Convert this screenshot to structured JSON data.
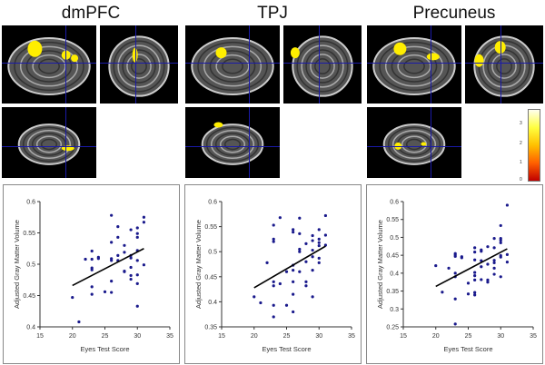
{
  "regions": [
    {
      "title": "dmPFC"
    },
    {
      "title": "TPJ"
    },
    {
      "title": "Precuneus"
    }
  ],
  "colorbar": {
    "labels": [
      "3",
      "2",
      "1",
      "0"
    ],
    "colors": [
      "#ffffff",
      "#ffff00",
      "#ff8000",
      "#c00000"
    ]
  },
  "crosshair_color": "#1a1aa8",
  "activation_color": "#ffee00",
  "chart_data": [
    {
      "type": "scatter",
      "title": "dmPFC",
      "xlabel": "Eyes Test Score",
      "ylabel": "Adjusted Gray Matter Volume",
      "xlim": [
        15,
        35
      ],
      "ylim": [
        0.4,
        0.6
      ],
      "xticks": [
        "15",
        "20",
        "25",
        "30",
        "35"
      ],
      "yticks": [
        "0.4",
        "0.45",
        "0.5",
        "0.55",
        "0.6"
      ],
      "point_color": "#1a1a8c",
      "x": [
        20,
        21,
        22,
        23,
        23,
        23,
        23,
        23,
        23,
        24,
        24,
        25,
        26,
        26,
        26,
        26,
        26,
        26,
        27,
        27,
        27,
        27,
        28,
        28,
        28,
        28,
        29,
        29,
        29,
        29,
        29,
        29,
        30,
        30,
        30,
        30,
        30,
        30,
        30,
        30,
        31,
        31,
        31
      ],
      "y": [
        0.447,
        0.408,
        0.508,
        0.521,
        0.508,
        0.494,
        0.491,
        0.464,
        0.452,
        0.511,
        0.509,
        0.456,
        0.578,
        0.535,
        0.509,
        0.506,
        0.473,
        0.455,
        0.56,
        0.543,
        0.514,
        0.506,
        0.53,
        0.519,
        0.489,
        0.488,
        0.555,
        0.514,
        0.51,
        0.495,
        0.482,
        0.476,
        0.558,
        0.549,
        0.543,
        0.522,
        0.506,
        0.483,
        0.469,
        0.433,
        0.575,
        0.567,
        0.499
      ],
      "trendline": {
        "x": [
          20,
          31
        ],
        "y": [
          0.466,
          0.525
        ]
      }
    },
    {
      "type": "scatter",
      "title": "TPJ",
      "xlabel": "Eyes Test Score",
      "ylabel": "Adjusted Gray Matter Volume",
      "xlim": [
        15,
        35
      ],
      "ylim": [
        0.35,
        0.6
      ],
      "xticks": [
        "15",
        "20",
        "25",
        "30",
        "35"
      ],
      "yticks": [
        "0.35",
        "0.4",
        "0.45",
        "0.5",
        "0.55",
        "0.6"
      ],
      "point_color": "#1a1a8c",
      "x": [
        20,
        21,
        22,
        23,
        23,
        23,
        23,
        23,
        23,
        23,
        24,
        24,
        25,
        25,
        26,
        26,
        26,
        26,
        26,
        26,
        26,
        27,
        27,
        27,
        27,
        27,
        28,
        28,
        28,
        28,
        29,
        29,
        29,
        29,
        29,
        29,
        30,
        30,
        30,
        30,
        30,
        30,
        31,
        31,
        31
      ],
      "y": [
        0.41,
        0.398,
        0.478,
        0.553,
        0.525,
        0.52,
        0.44,
        0.432,
        0.393,
        0.37,
        0.568,
        0.436,
        0.46,
        0.393,
        0.544,
        0.539,
        0.473,
        0.463,
        0.44,
        0.415,
        0.38,
        0.567,
        0.536,
        0.505,
        0.5,
        0.46,
        0.516,
        0.48,
        0.44,
        0.432,
        0.532,
        0.522,
        0.503,
        0.49,
        0.463,
        0.41,
        0.544,
        0.525,
        0.518,
        0.512,
        0.487,
        0.478,
        0.572,
        0.533,
        0.513
      ],
      "trendline": {
        "x": [
          20,
          31
        ],
        "y": [
          0.428,
          0.511
        ]
      }
    },
    {
      "type": "scatter",
      "title": "Precuneus",
      "xlabel": "Eyes Test Score",
      "ylabel": "Adjusted Gray Matter Volume",
      "xlim": [
        15,
        35
      ],
      "ylim": [
        0.25,
        0.6
      ],
      "xticks": [
        "15",
        "20",
        "25",
        "30",
        "35"
      ],
      "yticks": [
        "0.25",
        "0.3",
        "0.35",
        "0.4",
        "0.45",
        "0.5",
        "0.55",
        "0.6"
      ],
      "point_color": "#1a1a8c",
      "x": [
        20,
        21,
        22,
        23,
        23,
        23,
        23,
        23,
        23,
        23,
        24,
        24,
        25,
        25,
        26,
        26,
        26,
        26,
        26,
        26,
        26,
        26,
        27,
        27,
        27,
        27,
        27,
        28,
        28,
        28,
        28,
        29,
        29,
        29,
        29,
        29,
        29,
        30,
        30,
        30,
        30,
        30,
        30,
        30,
        31,
        31,
        31
      ],
      "y": [
        0.421,
        0.347,
        0.414,
        0.455,
        0.451,
        0.447,
        0.4,
        0.39,
        0.328,
        0.258,
        0.446,
        0.443,
        0.372,
        0.342,
        0.471,
        0.459,
        0.437,
        0.402,
        0.393,
        0.381,
        0.346,
        0.339,
        0.465,
        0.461,
        0.435,
        0.418,
        0.382,
        0.474,
        0.425,
        0.381,
        0.375,
        0.497,
        0.471,
        0.436,
        0.429,
        0.414,
        0.397,
        0.533,
        0.497,
        0.492,
        0.485,
        0.449,
        0.445,
        0.39,
        0.59,
        0.452,
        0.431
      ],
      "trendline": {
        "x": [
          20,
          31
        ],
        "y": [
          0.363,
          0.468
        ]
      }
    }
  ]
}
